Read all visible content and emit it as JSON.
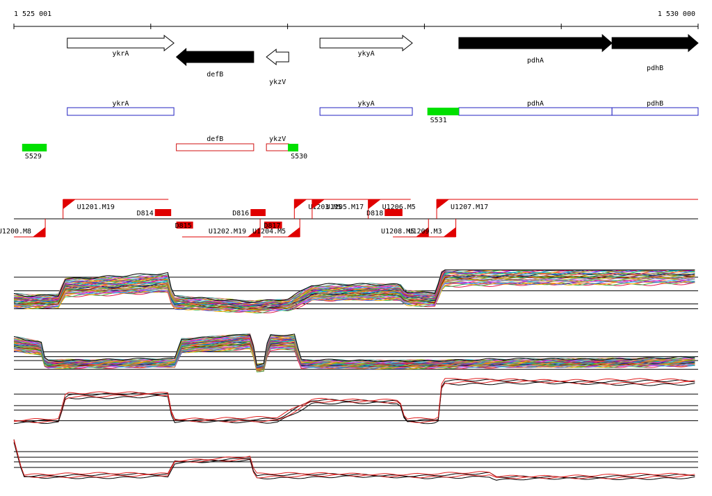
{
  "coordinates": {
    "start_label": "1 525 001",
    "end_label": "1 530 000",
    "start": 1525001,
    "end": 1530000
  },
  "colors": {
    "gene_fill": "#000000",
    "gene_outline": "#000000",
    "cds_blue": "#2020c0",
    "cds_red": "#d01010",
    "sig_green": "#00e000",
    "utr_red": "#e00000",
    "dashed_red": "#ff0000",
    "tile_line_red": "#e02020"
  },
  "genes": [
    {
      "name": "ykrA",
      "start": 1525391,
      "end": 1526170,
      "strand": "+",
      "filled": false
    },
    {
      "name": "defB",
      "start": 1526188,
      "end": 1526753,
      "strand": "-",
      "filled": true
    },
    {
      "name": "ykzV",
      "start": 1526846,
      "end": 1527009,
      "strand": "-",
      "filled": false
    },
    {
      "name": "ykyA",
      "start": 1527237,
      "end": 1527912,
      "strand": "+",
      "filled": false
    },
    {
      "name": "pdhA",
      "start": 1528252,
      "end": 1529371,
      "strand": "+",
      "filled": true
    },
    {
      "name": "pdhB",
      "start": 1529371,
      "end": 1530000,
      "strand": "+",
      "filled": true
    }
  ],
  "cds_blue": [
    {
      "name": "ykrA",
      "start": 1525391,
      "end": 1526170
    },
    {
      "name": "ykyA",
      "start": 1527237,
      "end": 1527912
    },
    {
      "name": "pdhA",
      "start": 1528252,
      "end": 1529371
    },
    {
      "name": "pdhB",
      "start": 1529371,
      "end": 1530000
    }
  ],
  "cds_red": [
    {
      "name": "defB",
      "start": 1526188,
      "end": 1526753
    },
    {
      "name": "ykzV",
      "start": 1526846,
      "end": 1527009
    }
  ],
  "signals": [
    {
      "name": "S529",
      "start": 1525061,
      "end": 1525241,
      "row": "low"
    },
    {
      "name": "S530",
      "start": 1527003,
      "end": 1527079,
      "row": "low"
    },
    {
      "name": "S531",
      "start": 1528022,
      "end": 1528252,
      "row": "high"
    }
  ],
  "transcripts_upper": [
    {
      "name": "U1201.M19",
      "start": 1525360,
      "end": 1526130
    },
    {
      "name": "U1203.M5",
      "start": 1527050,
      "end": 1527230
    },
    {
      "name": "U1205.M17",
      "start": 1527180,
      "end": 1527590
    },
    {
      "name": "U1206.M5",
      "start": 1527590,
      "end": 1527900
    },
    {
      "name": "U1207.M17",
      "start": 1528090,
      "end": 1530000
    }
  ],
  "transcripts_lower": [
    {
      "name": "U1200.M8",
      "start": 1525001,
      "end": 1525230
    },
    {
      "name": "U1202.M19",
      "start": 1526230,
      "end": 1526800
    },
    {
      "name": "U1204.M5",
      "start": 1526820,
      "end": 1527090
    },
    {
      "name": "U1208.M5",
      "start": 1527770,
      "end": 1528030
    },
    {
      "name": "U1209.M3",
      "start": 1528030,
      "end": 1528230
    }
  ],
  "down_marks_upper": [
    {
      "name": "D814",
      "start": 1526031,
      "end": 1526150
    },
    {
      "name": "D816",
      "start": 1526730,
      "end": 1526840
    },
    {
      "name": "D818",
      "start": 1527710,
      "end": 1527840
    }
  ],
  "down_marks_lower": [
    {
      "name": "D815",
      "start": 1526188,
      "end": 1526310
    },
    {
      "name": "D817",
      "start": 1526830,
      "end": 1526960
    }
  ],
  "tiling_panels": [
    {
      "id": "panel-1",
      "y_range": [
        0,
        1
      ],
      "ref_lines": [
        0.25,
        0.35,
        0.62,
        0.9
      ],
      "line_count": 40,
      "mode": "multicolor",
      "profile": [
        [
          1525001,
          0.42
        ],
        [
          1525120,
          0.4
        ],
        [
          1525330,
          0.42
        ],
        [
          1525370,
          0.7
        ],
        [
          1526130,
          0.78
        ],
        [
          1526160,
          0.38
        ],
        [
          1526760,
          0.3
        ],
        [
          1527010,
          0.34
        ],
        [
          1527180,
          0.58
        ],
        [
          1527820,
          0.6
        ],
        [
          1527860,
          0.48
        ],
        [
          1528080,
          0.45
        ],
        [
          1528140,
          0.95
        ],
        [
          1530000,
          1.0
        ]
      ]
    },
    {
      "id": "panel-2",
      "y_range": [
        0,
        1
      ],
      "ref_lines": [
        0.06,
        0.28,
        0.38,
        0.5
      ],
      "line_count": 40,
      "mode": "multicolor",
      "profile": [
        [
          1525001,
          0.7
        ],
        [
          1525200,
          0.6
        ],
        [
          1525230,
          0.2
        ],
        [
          1526180,
          0.22
        ],
        [
          1526220,
          0.65
        ],
        [
          1526740,
          0.78
        ],
        [
          1526770,
          0.1
        ],
        [
          1526830,
          0.12
        ],
        [
          1526860,
          0.75
        ],
        [
          1527060,
          0.75
        ],
        [
          1527090,
          0.2
        ],
        [
          1527600,
          0.18
        ],
        [
          1528200,
          0.2
        ],
        [
          1530000,
          0.25
        ]
      ]
    },
    {
      "id": "panel-3",
      "y_range": [
        0,
        1
      ],
      "ref_lines": [
        0.1,
        0.34,
        0.44,
        0.7
      ],
      "line_count": 4,
      "mode": "black-red",
      "profile": [
        [
          1525001,
          0.1
        ],
        [
          1525330,
          0.12
        ],
        [
          1525380,
          0.68
        ],
        [
          1526130,
          0.7
        ],
        [
          1526160,
          0.12
        ],
        [
          1526930,
          0.14
        ],
        [
          1527180,
          0.55
        ],
        [
          1527820,
          0.55
        ],
        [
          1527860,
          0.12
        ],
        [
          1528100,
          0.12
        ],
        [
          1528130,
          1.0
        ],
        [
          1530000,
          0.98
        ]
      ]
    },
    {
      "id": "panel-4",
      "y_range": [
        0,
        1
      ],
      "ref_lines": [
        0.3,
        0.44,
        0.56,
        0.7
      ],
      "line_count": 4,
      "mode": "black-red",
      "profile": [
        [
          1525001,
          1.0
        ],
        [
          1525070,
          0.1
        ],
        [
          1526130,
          0.12
        ],
        [
          1526170,
          0.45
        ],
        [
          1526730,
          0.55
        ],
        [
          1526760,
          0.1
        ],
        [
          1527400,
          0.12
        ],
        [
          1528000,
          0.1
        ],
        [
          1528480,
          0.14
        ],
        [
          1528520,
          0.05
        ],
        [
          1530000,
          0.1
        ]
      ]
    }
  ]
}
